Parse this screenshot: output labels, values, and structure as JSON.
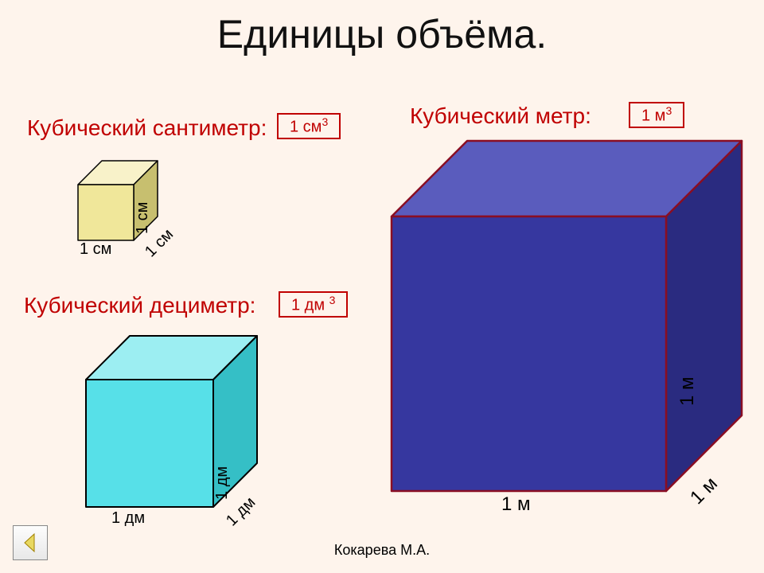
{
  "background_color": "#fef4ec",
  "title": "Единицы объёма.",
  "title_color": "#111111",
  "label_color": "#c00000",
  "box_border_color": "#c00000",
  "box_text_color": "#c00000",
  "author": "Кокарева М.А.",
  "sections": {
    "cm": {
      "label": "Кубический сантиметр:",
      "unit_base": "1 см",
      "unit_sup": "3",
      "edge": "1 см",
      "cube": {
        "size": 70,
        "depth": 30,
        "front_fill": "#f0e79a",
        "top_fill": "#f8f2c9",
        "side_fill": "#c7bf6f",
        "stroke": "#000000",
        "stroke_width": 1.5
      }
    },
    "dm": {
      "label": "Кубический дециметр:",
      "unit_base": "1 дм ",
      "unit_sup": "3",
      "edge": "1 дм",
      "cube": {
        "size": 160,
        "depth": 55,
        "front_fill": "#57e0e8",
        "top_fill": "#9ceef2",
        "side_fill": "#35bfc6",
        "stroke": "#000000",
        "stroke_width": 2
      }
    },
    "m": {
      "label": "Кубический метр:",
      "unit_base": "1 м",
      "unit_sup": "3",
      "edge": "1 м",
      "cube": {
        "size": 345,
        "depth": 95,
        "front_fill": "#36379f",
        "top_fill": "#5a5cbd",
        "side_fill": "#2a2b80",
        "stroke": "#8a0e23",
        "stroke_width": 2.5
      }
    }
  }
}
